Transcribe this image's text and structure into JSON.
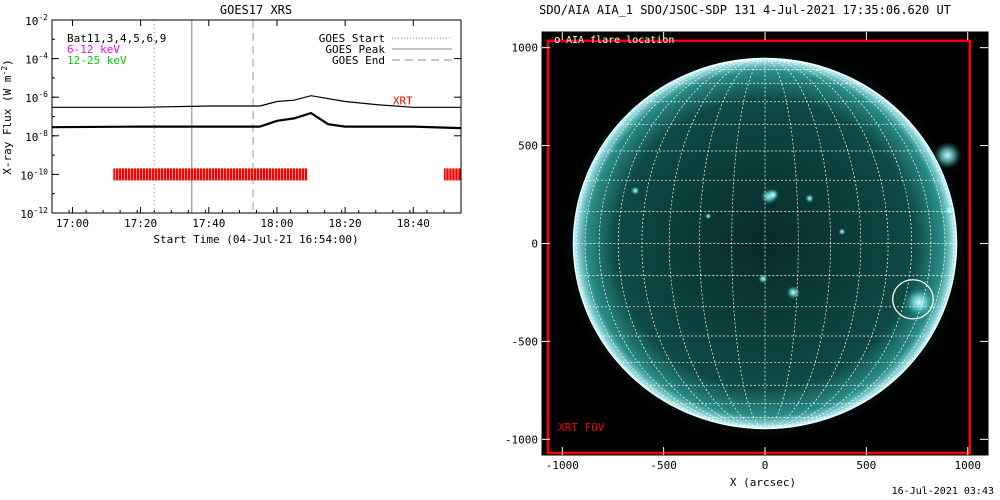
{
  "chart_data": [
    {
      "type": "line",
      "title": "GOES17 XRS",
      "xlabel": "Start Time (04-Jul-21 16:54:00)",
      "ylabel": "X-ray Flux (W m",
      "ylabel_exponent": "-2",
      "ylabel_close": ")",
      "y_scale": "log",
      "ylim": [
        1e-12,
        0.01
      ],
      "xlim": [
        "16:54",
        "18:54"
      ],
      "x_ticks": [
        "17:00",
        "17:20",
        "17:40",
        "18:00",
        "18:20",
        "18:40"
      ],
      "y_ticks": [
        {
          "value": 0.01,
          "label": "10",
          "exp": "-2"
        },
        {
          "value": 0.0001,
          "label": "10",
          "exp": "-4"
        },
        {
          "value": 1e-06,
          "label": "10",
          "exp": "-6"
        },
        {
          "value": 1e-08,
          "label": "10",
          "exp": "-8"
        },
        {
          "value": 1e-10,
          "label": "10",
          "exp": "-10"
        },
        {
          "value": 1e-12,
          "label": "10",
          "exp": "-12"
        }
      ],
      "legend_left": {
        "position": "top-left",
        "items": [
          {
            "label": "Bat11,3,4,5,6,9",
            "color": "#000000"
          },
          {
            "label": "6-12 keV",
            "color": "#ff00ff"
          },
          {
            "label": "12-25 keV",
            "color": "#00cc00"
          }
        ]
      },
      "legend_right": {
        "position": "top-right",
        "items": [
          {
            "label": "GOES Start",
            "style": "dotted"
          },
          {
            "label": "GOES Peak",
            "style": "solid"
          },
          {
            "label": "GOES End",
            "style": "dashed"
          }
        ]
      },
      "series": [
        {
          "name": "XRT",
          "color": "#000000",
          "label_color": "#ff0000",
          "x": [
            "16:54",
            "17:20",
            "17:40",
            "17:55",
            "18:00",
            "18:05",
            "18:10",
            "18:20",
            "18:30",
            "18:40",
            "18:54"
          ],
          "values": [
            3e-07,
            3e-07,
            3.5e-07,
            3.5e-07,
            6e-07,
            7e-07,
            1.2e-06,
            6e-07,
            4e-07,
            3e-07,
            3e-07
          ]
        },
        {
          "color": "#000000",
          "x": [
            "16:54",
            "17:20",
            "17:40",
            "17:55",
            "18:00",
            "18:05",
            "18:10",
            "18:15",
            "18:20",
            "18:40",
            "18:54"
          ],
          "values": [
            2.8e-08,
            3e-08,
            3e-08,
            3e-08,
            6e-08,
            8e-08,
            1.5e-07,
            4e-08,
            3e-08,
            3e-08,
            2.5e-08
          ]
        }
      ],
      "vlines": [
        {
          "x": "17:24",
          "style": "dotted",
          "color": "#999999"
        },
        {
          "x": "17:35",
          "style": "solid",
          "color": "#aaaaaa"
        },
        {
          "x": "17:53",
          "style": "dashed",
          "color": "#aaaaaa"
        }
      ],
      "coverage": {
        "color": "#ff0000",
        "y": 1e-10,
        "intervals": [
          [
            "17:12",
            "18:09"
          ],
          [
            "18:49",
            "18:54"
          ]
        ]
      }
    },
    {
      "type": "scatter",
      "title": "SDO/AIA AIA_1 SDO/JSOC-SDP 131  4-Jul-2021 17:35:06.620 UT",
      "xlabel": "X (arcsec)",
      "ylabel": "",
      "xlim": [
        -1100,
        1100
      ],
      "ylim": [
        -1080,
        1080
      ],
      "x_ticks": [
        -1000,
        -500,
        0,
        500,
        1000
      ],
      "y_ticks": [
        -1000,
        -500,
        0,
        500,
        1000
      ],
      "x_tick_labels": [
        "-1000",
        "-500",
        "0",
        "500",
        "1000"
      ],
      "y_tick_labels": [
        "-1000",
        "-500",
        "0",
        "500",
        "1000"
      ],
      "solar_radius_arcsec": 945,
      "grid_spacing_deg": 10,
      "legend": {
        "position": "top-left",
        "symbol": "o",
        "label": "AIA flare location"
      },
      "flare_location": {
        "x": 730,
        "y": -285,
        "radius": 100,
        "color": "#ffffff"
      },
      "fov": {
        "label": "XRT FOV",
        "color": "#ff0000",
        "x": [
          -1070,
          1010
        ],
        "y": [
          -1070,
          1035
        ]
      },
      "colors": {
        "disk": "#0c3a36",
        "glow": "#7fffff",
        "grid": "#ffffff"
      }
    }
  ],
  "footer": {
    "timestamp": "16-Jul-2021 03:43"
  }
}
